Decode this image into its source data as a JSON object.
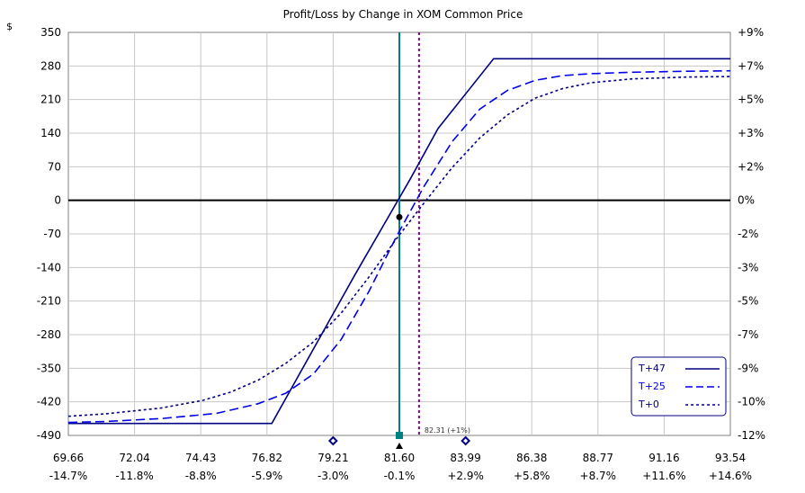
{
  "chart_data": {
    "type": "line",
    "title": "Profit/Loss by Change in XOM Common Price",
    "y_unit_label": "$",
    "xlim": [
      69.66,
      93.54
    ],
    "ylim": [
      -490,
      350
    ],
    "x_tick_labels": [
      "69.66",
      "72.04",
      "74.43",
      "76.82",
      "79.21",
      "81.60",
      "83.99",
      "86.38",
      "88.77",
      "91.16",
      "93.54"
    ],
    "x_pct_labels": [
      "-14.7%",
      "-11.8%",
      "-8.8%",
      "-5.9%",
      "-3.0%",
      "-0.1%",
      "+2.9%",
      "+5.8%",
      "+8.7%",
      "+11.6%",
      "+14.6%"
    ],
    "y_tick_labels": [
      "350",
      "280",
      "210",
      "140",
      "70",
      "0",
      "-70",
      "-140",
      "-210",
      "-280",
      "-350",
      "-420",
      "-490"
    ],
    "y_pct_labels": [
      "+9%",
      "+7%",
      "+5%",
      "+3%",
      "+2%",
      "0%",
      "-2%",
      "-3%",
      "-5%",
      "-7%",
      "-9%",
      "-10%",
      "-12%"
    ],
    "grid": true,
    "legend_position": "bottom-right",
    "series": [
      {
        "name": "T+47",
        "color": "#000080",
        "style": "solid",
        "x": [
          69.66,
          70.5,
          72.0,
          74.0,
          76.0,
          77.0,
          80.0,
          82.0,
          83.0,
          85.0,
          87.0,
          90.0,
          93.54
        ],
        "y": [
          -465,
          -465,
          -465,
          -465,
          -465,
          -465,
          -155,
          45,
          150,
          295,
          295,
          295,
          295
        ]
      },
      {
        "name": "T+25",
        "color": "#0000ee",
        "style": "long-dash",
        "x": [
          69.66,
          71.0,
          73.0,
          75.0,
          76.5,
          77.5,
          78.5,
          79.5,
          80.5,
          81.5,
          82.5,
          83.5,
          84.5,
          85.5,
          86.5,
          87.5,
          88.5,
          90.0,
          92.0,
          93.54
        ],
        "y": [
          -463,
          -461,
          -455,
          -444,
          -424,
          -402,
          -362,
          -290,
          -190,
          -75,
          30,
          122,
          190,
          229,
          250,
          260,
          264,
          267,
          269,
          270
        ]
      },
      {
        "name": "T+0",
        "color": "#000080",
        "style": "short-dash",
        "x": [
          69.66,
          71.0,
          73.0,
          74.5,
          75.5,
          76.5,
          77.5,
          78.5,
          79.5,
          80.5,
          81.5,
          82.5,
          83.5,
          84.5,
          85.5,
          86.5,
          87.5,
          88.5,
          90.0,
          92.0,
          93.54
        ],
        "y": [
          -450,
          -445,
          -433,
          -417,
          -400,
          -375,
          -340,
          -295,
          -235,
          -160,
          -80,
          -5,
          68,
          130,
          178,
          213,
          233,
          245,
          253,
          257,
          258
        ]
      }
    ],
    "reference_lines": [
      {
        "type": "current-price",
        "x": 81.6,
        "color": "#008080"
      },
      {
        "type": "target",
        "x": 82.31,
        "color": "#8b008b",
        "label": "82.31 (+1%)"
      }
    ],
    "markers": [
      {
        "type": "current-point",
        "x": 81.6,
        "y": -35,
        "shape": "circle",
        "color": "#000000"
      },
      {
        "type": "axis-diamond",
        "x": 79.21,
        "color": "#000080"
      },
      {
        "type": "axis-diamond",
        "x": 83.99,
        "color": "#000080"
      },
      {
        "type": "axis-square",
        "x": 81.6,
        "color": "#008080"
      },
      {
        "type": "axis-triangle",
        "x": 81.6,
        "color": "#000000"
      }
    ],
    "legend_labels": [
      "T+47",
      "T+25",
      "T+0"
    ]
  }
}
